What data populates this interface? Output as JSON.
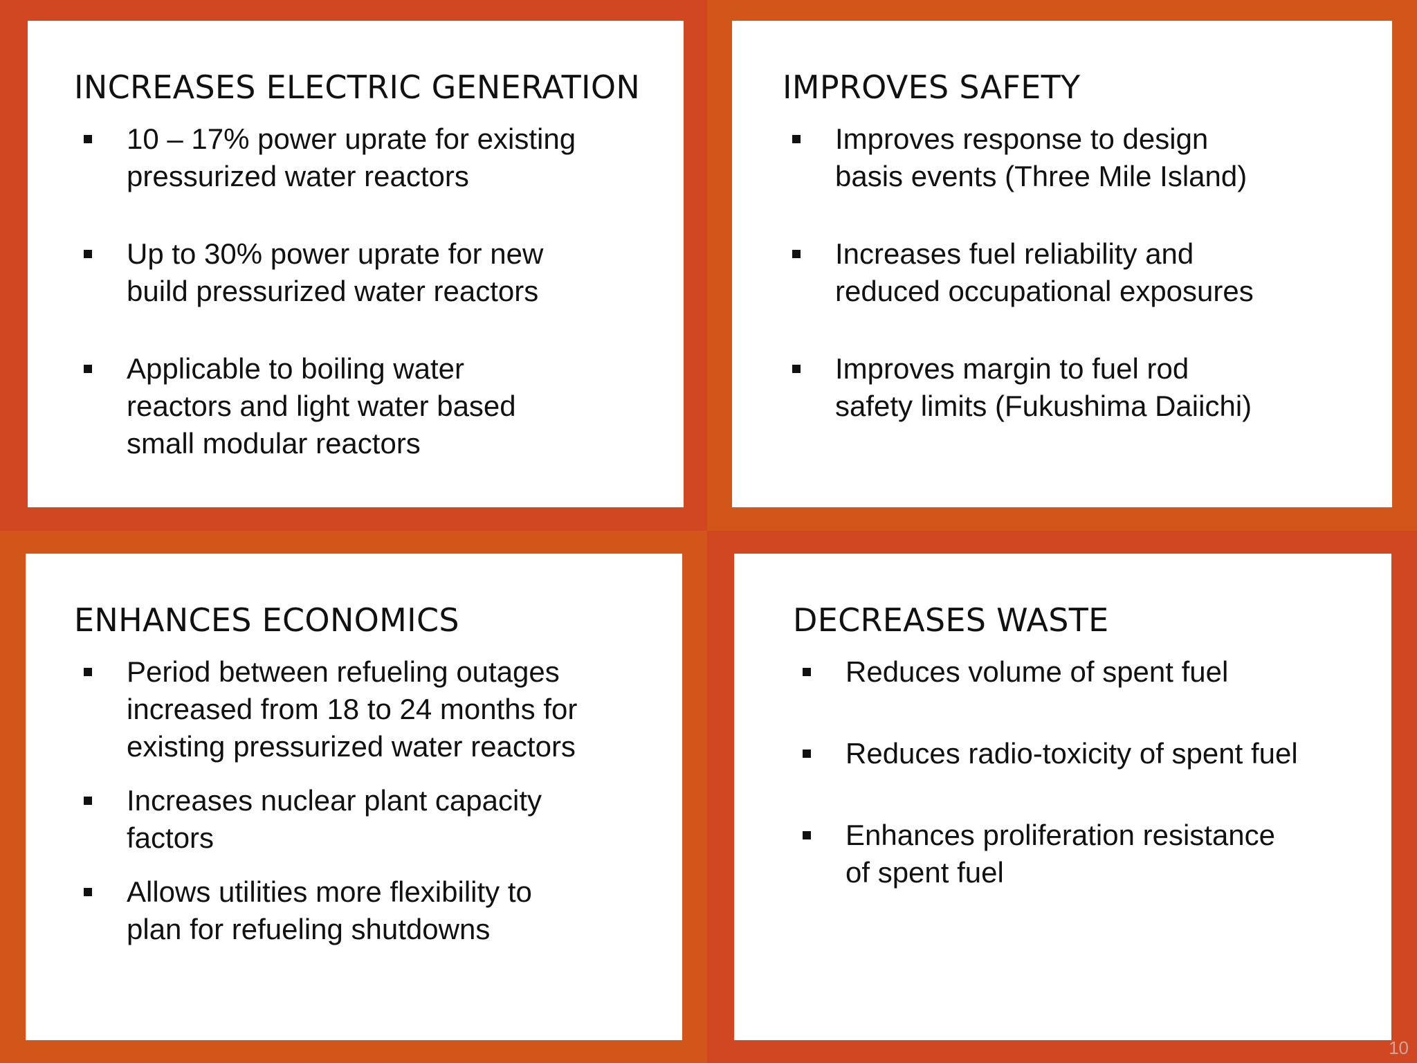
{
  "panels": {
    "top_left": {
      "title": "INCREASES ELECTRIC GENERATION",
      "bullets": [
        "10 – 17% power uprate for existing\npressurized water reactors",
        "Up to 30% power uprate for new\nbuild pressurized water reactors",
        "Applicable to boiling water\nreactors and light water based\nsmall modular reactors"
      ]
    },
    "top_right": {
      "title": "IMPROVES SAFETY",
      "bullets": [
        "Improves response to design\nbasis events (Three Mile Island)",
        "Increases fuel reliability and\nreduced occupational exposures",
        "Improves margin to fuel rod\nsafety limits (Fukushima Daiichi)"
      ]
    },
    "bottom_left": {
      "title": "ENHANCES ECONOMICS",
      "bullets": [
        "Period between refueling outages\nincreased from 18 to 24 months for\nexisting pressurized water reactors",
        "Increases nuclear plant capacity\nfactors",
        "Allows utilities more flexibility to\nplan for refueling shutdowns"
      ]
    },
    "bottom_right": {
      "title": "DECREASES WASTE",
      "bullets": [
        "Reduces volume of spent fuel",
        "Reduces radio-toxicity of spent fuel",
        "Enhances proliferation resistance\nof spent fuel"
      ]
    }
  },
  "page_number": "10",
  "colors": {
    "frame_red": "#d04722",
    "frame_orange": "#d2561a",
    "panel_bg": "#ffffff",
    "text": "#111111"
  }
}
